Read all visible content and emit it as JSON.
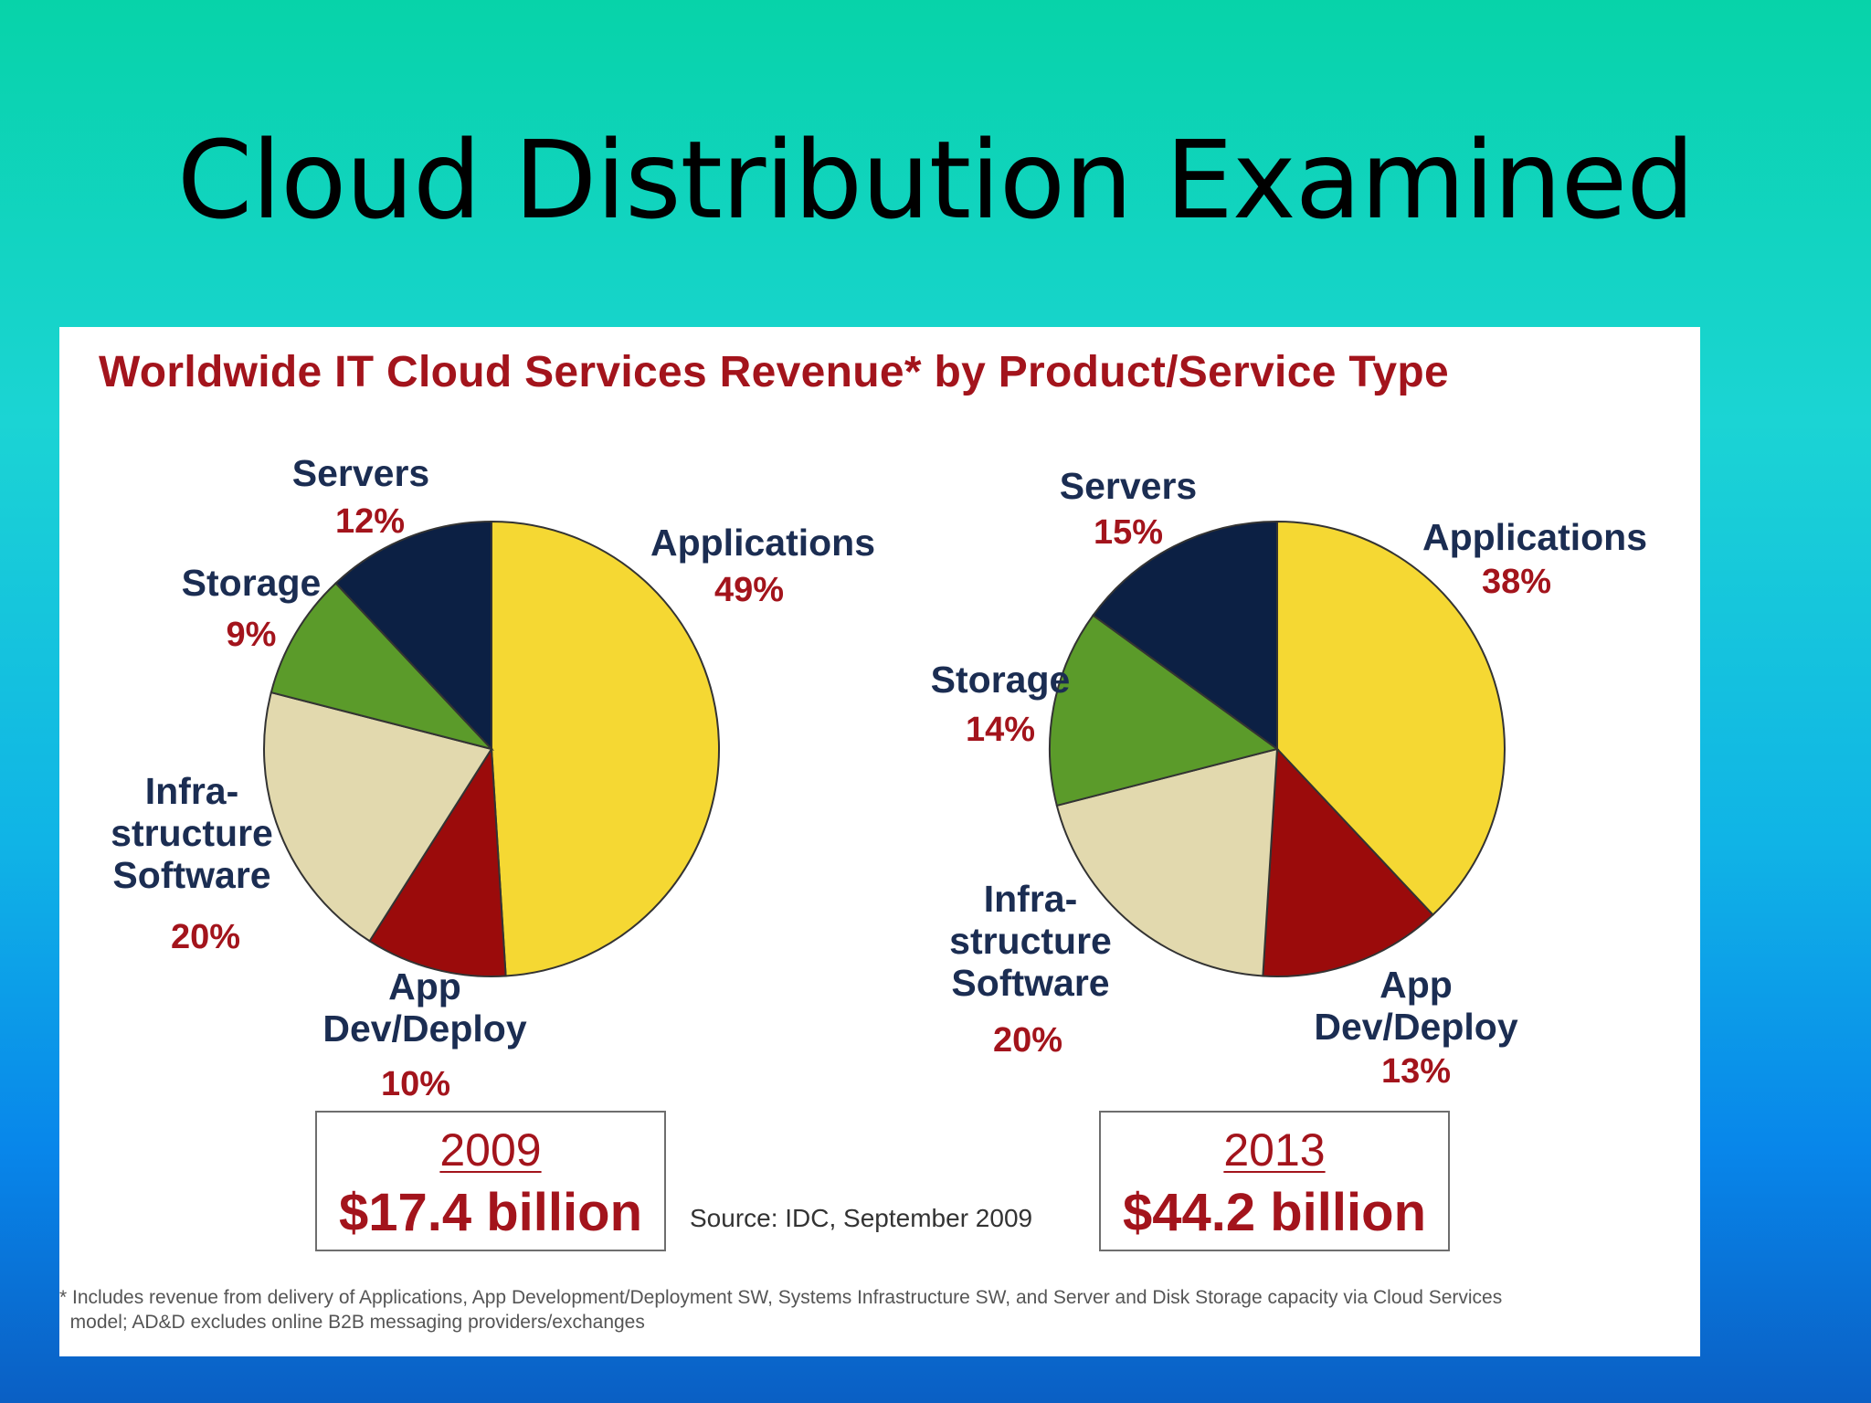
{
  "slide_title": "Cloud Distribution Examined",
  "colors": {
    "Applications": "#f5d833",
    "App Dev/Deploy": "#9b0b0b",
    "Infrastructure Software": "#e2d9ae",
    "Storage": "#5b9b2a",
    "Servers": "#0c2044",
    "label_text": "#1b2d52",
    "accent_red": "#a3141c"
  },
  "chart_data": {
    "type": "pie",
    "title": "Worldwide IT Cloud Services Revenue* by Product/Service Type",
    "source": "Source: IDC, September 2009",
    "footnote": "* Includes revenue from delivery of Applications, App Development/Deployment SW, Systems Infrastructure SW, and Server and Disk Storage capacity via Cloud Services\n  model; AD&D excludes online B2B messaging providers/exchanges",
    "charts": [
      {
        "year": "2009",
        "total": "$17.4 billion",
        "slices": [
          {
            "name": "Applications",
            "label": "Applications",
            "value": 49,
            "pct_label": "49%"
          },
          {
            "name": "App Dev/Deploy",
            "label": "App\nDev/Deploy",
            "value": 10,
            "pct_label": "10%"
          },
          {
            "name": "Infrastructure Software",
            "label": "Infra-\nstructure\nSoftware",
            "value": 20,
            "pct_label": "20%"
          },
          {
            "name": "Storage",
            "label": "Storage",
            "value": 9,
            "pct_label": "9%"
          },
          {
            "name": "Servers",
            "label": "Servers",
            "value": 12,
            "pct_label": "12%"
          }
        ]
      },
      {
        "year": "2013",
        "total": "$44.2 billion",
        "slices": [
          {
            "name": "Applications",
            "label": "Applications",
            "value": 38,
            "pct_label": "38%"
          },
          {
            "name": "App Dev/Deploy",
            "label": "App\nDev/Deploy",
            "value": 13,
            "pct_label": "13%"
          },
          {
            "name": "Infrastructure Software",
            "label": "Infra-\nstructure\nSoftware",
            "value": 20,
            "pct_label": "20%"
          },
          {
            "name": "Storage",
            "label": "Storage",
            "value": 14,
            "pct_label": "14%"
          },
          {
            "name": "Servers",
            "label": "Servers",
            "value": 15,
            "pct_label": "15%"
          }
        ]
      }
    ]
  }
}
